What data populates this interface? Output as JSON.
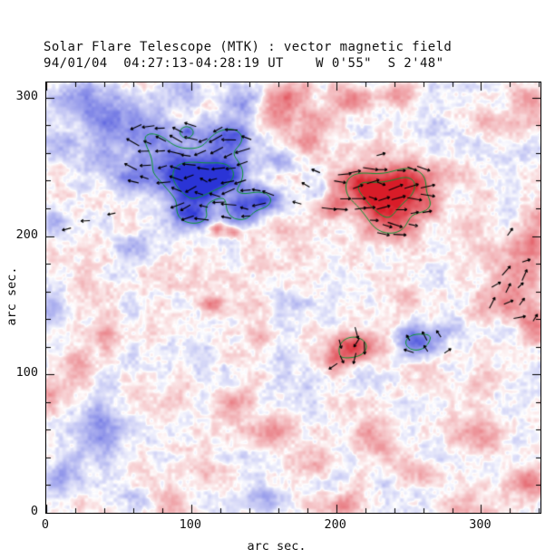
{
  "chart_data": {
    "type": "heatmap",
    "title": "Solar Flare Telescope (MTK) : vector magnetic field",
    "subtitle": "94/01/04  04:27:13-04:28:19 UT    W 0'55\"  S 2'48\"",
    "xlabel": "arc sec.",
    "ylabel": "arc sec.",
    "xlim": [
      0,
      341
    ],
    "ylim": [
      0,
      311
    ],
    "x_ticks": [
      0,
      100,
      200,
      300
    ],
    "y_ticks": [
      0,
      100,
      200,
      300
    ],
    "minor_tick_interval": 20,
    "legend": "red = positive polarity, blue = negative polarity, green = field strength contours, black segments = transverse field vectors",
    "colors": {
      "positive": "#d81c28",
      "negative": "#2a34d6",
      "contour": "#0a9632",
      "vector": "#000000",
      "background": "#ffffff"
    },
    "contour_levels": [
      0.52,
      0.9
    ],
    "noise_octaves": [
      {
        "scale": 28,
        "amp": 0.13,
        "seed": 1
      },
      {
        "scale": 10,
        "amp": 0.1,
        "seed": 2
      },
      {
        "scale": 4,
        "amp": 0.08,
        "seed": 3
      }
    ],
    "blobs": [
      {
        "x": 103,
        "y": 238,
        "sx": 13,
        "sy": 11,
        "amp": -1.15
      },
      {
        "x": 125,
        "y": 245,
        "sx": 10,
        "sy": 9,
        "amp": -0.8
      },
      {
        "x": 148,
        "y": 226,
        "sx": 8,
        "sy": 6,
        "amp": -0.75
      },
      {
        "x": 88,
        "y": 252,
        "sx": 18,
        "sy": 12,
        "amp": -0.5
      },
      {
        "x": 120,
        "y": 268,
        "sx": 14,
        "sy": 9,
        "amp": -0.45
      },
      {
        "x": 75,
        "y": 270,
        "sx": 12,
        "sy": 10,
        "amp": -0.4
      },
      {
        "x": 52,
        "y": 282,
        "sx": 14,
        "sy": 10,
        "amp": -0.36
      },
      {
        "x": 30,
        "y": 296,
        "sx": 14,
        "sy": 12,
        "amp": -0.4
      },
      {
        "x": 8,
        "y": 268,
        "sx": 10,
        "sy": 10,
        "amp": -0.34
      },
      {
        "x": 95,
        "y": 301,
        "sx": 10,
        "sy": 8,
        "amp": -0.34
      },
      {
        "x": 140,
        "y": 297,
        "sx": 10,
        "sy": 8,
        "amp": -0.38
      },
      {
        "x": 60,
        "y": 240,
        "sx": 10,
        "sy": 8,
        "amp": -0.34
      },
      {
        "x": 42,
        "y": 252,
        "sx": 8,
        "sy": 7,
        "amp": -0.3
      },
      {
        "x": 5,
        "y": 212,
        "sx": 6,
        "sy": 6,
        "amp": -0.3
      },
      {
        "x": 58,
        "y": 192,
        "sx": 8,
        "sy": 7,
        "amp": -0.28
      },
      {
        "x": 128,
        "y": 272,
        "sx": 8,
        "sy": 6,
        "amp": -0.4
      },
      {
        "x": 162,
        "y": 254,
        "sx": 7,
        "sy": 6,
        "amp": -0.34
      },
      {
        "x": 188,
        "y": 232,
        "sx": 5,
        "sy": 5,
        "amp": -0.3
      },
      {
        "x": 98,
        "y": 218,
        "sx": 8,
        "sy": 6,
        "amp": -0.5
      },
      {
        "x": 132,
        "y": 222,
        "sx": 7,
        "sy": 6,
        "amp": -0.6
      },
      {
        "x": 105,
        "y": 212,
        "sx": 10,
        "sy": 5,
        "amp": -0.4
      },
      {
        "x": 135,
        "y": 214,
        "sx": 8,
        "sy": 5,
        "amp": -0.4
      },
      {
        "x": 97,
        "y": 276,
        "sx": 4,
        "sy": 3.5,
        "amp": -0.55
      },
      {
        "x": 255,
        "y": 123,
        "sx": 9,
        "sy": 7,
        "amp": -0.7
      },
      {
        "x": 270,
        "y": 131,
        "sx": 7,
        "sy": 6,
        "amp": -0.32
      },
      {
        "x": 35,
        "y": 60,
        "sx": 14,
        "sy": 12,
        "amp": -0.42
      },
      {
        "x": 12,
        "y": 28,
        "sx": 10,
        "sy": 9,
        "amp": -0.34
      },
      {
        "x": 60,
        "y": 10,
        "sx": 8,
        "sy": 7,
        "amp": -0.3
      },
      {
        "x": 2,
        "y": 150,
        "sx": 6,
        "sy": 8,
        "amp": -0.28
      },
      {
        "x": 150,
        "y": 8,
        "sx": 7,
        "sy": 6,
        "amp": -0.26
      },
      {
        "x": 233,
        "y": 228,
        "sx": 14,
        "sy": 12,
        "amp": 1.15
      },
      {
        "x": 252,
        "y": 240,
        "sx": 10,
        "sy": 9,
        "amp": 0.65
      },
      {
        "x": 214,
        "y": 238,
        "sx": 9,
        "sy": 8,
        "amp": 0.5
      },
      {
        "x": 238,
        "y": 207,
        "sx": 12,
        "sy": 8,
        "amp": 0.5
      },
      {
        "x": 262,
        "y": 222,
        "sx": 8,
        "sy": 7,
        "amp": 0.42
      },
      {
        "x": 198,
        "y": 222,
        "sx": 7,
        "sy": 6,
        "amp": 0.34
      },
      {
        "x": 160,
        "y": 293,
        "sx": 12,
        "sy": 9,
        "amp": 0.4
      },
      {
        "x": 185,
        "y": 282,
        "sx": 9,
        "sy": 8,
        "amp": 0.36
      },
      {
        "x": 208,
        "y": 298,
        "sx": 9,
        "sy": 7,
        "amp": 0.38
      },
      {
        "x": 173,
        "y": 306,
        "sx": 10,
        "sy": 7,
        "amp": 0.36
      },
      {
        "x": 240,
        "y": 303,
        "sx": 8,
        "sy": 6,
        "amp": 0.3
      },
      {
        "x": 330,
        "y": 298,
        "sx": 10,
        "sy": 8,
        "amp": 0.42
      },
      {
        "x": 305,
        "y": 281,
        "sx": 8,
        "sy": 7,
        "amp": 0.28
      },
      {
        "x": 322,
        "y": 165,
        "sx": 14,
        "sy": 16,
        "amp": 0.45
      },
      {
        "x": 336,
        "y": 135,
        "sx": 8,
        "sy": 10,
        "amp": 0.4
      },
      {
        "x": 333,
        "y": 193,
        "sx": 8,
        "sy": 8,
        "amp": 0.38
      },
      {
        "x": 300,
        "y": 150,
        "sx": 8,
        "sy": 8,
        "amp": 0.28
      },
      {
        "x": 338,
        "y": 212,
        "sx": 6,
        "sy": 8,
        "amp": 0.3
      },
      {
        "x": 212,
        "y": 120,
        "sx": 9,
        "sy": 7,
        "amp": 0.85
      },
      {
        "x": 199,
        "y": 108,
        "sx": 7,
        "sy": 6,
        "amp": 0.34
      },
      {
        "x": 118,
        "y": 206,
        "sx": 4.5,
        "sy": 3.5,
        "amp": 0.6
      },
      {
        "x": 129,
        "y": 203,
        "sx": 3.5,
        "sy": 3,
        "amp": 0.5
      },
      {
        "x": 115,
        "y": 152,
        "sx": 5,
        "sy": 4,
        "amp": 0.38
      },
      {
        "x": 150,
        "y": 128,
        "sx": 6,
        "sy": 5,
        "amp": 0.28
      },
      {
        "x": 130,
        "y": 80,
        "sx": 10,
        "sy": 8,
        "amp": 0.34
      },
      {
        "x": 152,
        "y": 58,
        "sx": 10,
        "sy": 8,
        "amp": 0.38
      },
      {
        "x": 186,
        "y": 38,
        "sx": 9,
        "sy": 8,
        "amp": 0.34
      },
      {
        "x": 225,
        "y": 55,
        "sx": 10,
        "sy": 8,
        "amp": 0.38
      },
      {
        "x": 255,
        "y": 28,
        "sx": 9,
        "sy": 7,
        "amp": 0.34
      },
      {
        "x": 298,
        "y": 55,
        "sx": 12,
        "sy": 10,
        "amp": 0.38
      },
      {
        "x": 330,
        "y": 22,
        "sx": 10,
        "sy": 9,
        "amp": 0.4
      },
      {
        "x": 285,
        "y": 6,
        "sx": 9,
        "sy": 6,
        "amp": 0.34
      },
      {
        "x": 205,
        "y": 6,
        "sx": 8,
        "sy": 6,
        "amp": 0.3
      },
      {
        "x": 108,
        "y": 28,
        "sx": 7,
        "sy": 6,
        "amp": 0.34
      },
      {
        "x": 88,
        "y": 8,
        "sx": 7,
        "sy": 6,
        "amp": 0.3
      },
      {
        "x": 22,
        "y": 108,
        "sx": 7,
        "sy": 7,
        "amp": 0.32
      },
      {
        "x": 42,
        "y": 128,
        "sx": 6,
        "sy": 6,
        "amp": 0.25
      },
      {
        "x": 2,
        "y": 88,
        "sx": 6,
        "sy": 7,
        "amp": 0.3
      },
      {
        "x": 28,
        "y": 168,
        "sx": 8,
        "sy": 7,
        "amp": 0.28
      },
      {
        "x": 278,
        "y": 250,
        "sx": 7,
        "sy": 6,
        "amp": 0.25
      },
      {
        "x": 295,
        "y": 92,
        "sx": 7,
        "sy": 6,
        "amp": 0.24
      },
      {
        "x": 178,
        "y": 268,
        "sx": 6,
        "sy": 5,
        "amp": 0.3
      },
      {
        "x": 248,
        "y": 160,
        "sx": 6,
        "sy": 5,
        "amp": 0.2
      }
    ],
    "vector_patches": [
      {
        "x0": 60,
        "x1": 166,
        "y0": 203,
        "y1": 282,
        "step": 9.5,
        "angle": 180,
        "jitter": 30,
        "len": 13,
        "len_jitter": 4,
        "min_field": 0.3,
        "sign": -1
      },
      {
        "x0": 186,
        "x1": 268,
        "y0": 190,
        "y1": 254,
        "step": 9.5,
        "angle": 0,
        "jitter": 22,
        "len": 13,
        "len_jitter": 4,
        "min_field": 0.28,
        "sign": 1
      },
      {
        "x0": 196,
        "x1": 232,
        "y0": 104,
        "y1": 136,
        "step": 8.5,
        "angle": 250,
        "jitter": 60,
        "len": 11,
        "len_jitter": 3,
        "min_field": 0.3,
        "sign": 1
      },
      {
        "x0": 242,
        "x1": 272,
        "y0": 110,
        "y1": 136,
        "step": 9,
        "angle": 150,
        "jitter": 45,
        "len": 10,
        "len_jitter": 3,
        "min_field": 0.3,
        "sign": -1
      },
      {
        "x0": 308,
        "x1": 340,
        "y0": 142,
        "y1": 192,
        "step": 10.5,
        "angle": 40,
        "jitter": 30,
        "len": 11,
        "len_jitter": 3,
        "min_field": 0.3,
        "sign": 1
      }
    ],
    "extra_vectors": [
      {
        "x": 14,
        "y": 205,
        "angle": 195,
        "len": 10
      },
      {
        "x": 27,
        "y": 211,
        "angle": 183,
        "len": 10
      },
      {
        "x": 45,
        "y": 216,
        "angle": 192,
        "len": 9
      },
      {
        "x": 173,
        "y": 224,
        "angle": 165,
        "len": 10
      },
      {
        "x": 179,
        "y": 237,
        "angle": 150,
        "len": 10
      },
      {
        "x": 186,
        "y": 247,
        "angle": 158,
        "len": 10
      },
      {
        "x": 231,
        "y": 259,
        "angle": 15,
        "len": 10
      },
      {
        "x": 277,
        "y": 117,
        "angle": 35,
        "len": 9
      },
      {
        "x": 320,
        "y": 203,
        "angle": 55,
        "len": 10
      }
    ]
  }
}
